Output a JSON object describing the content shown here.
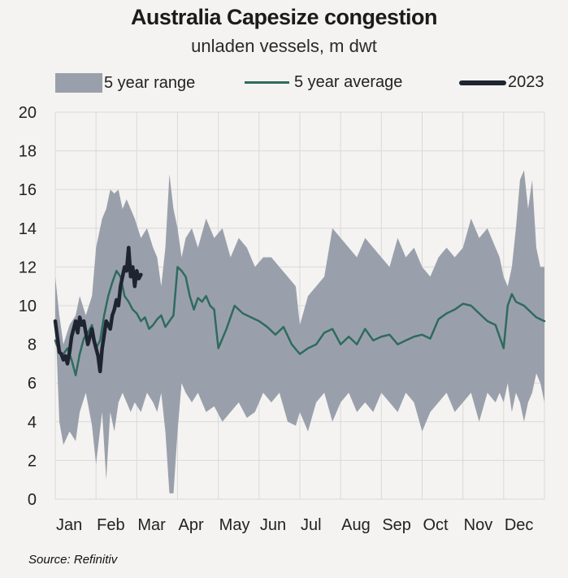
{
  "chart_data": {
    "type": "line",
    "title": "Australia Capesize congestion",
    "subtitle": "unladen vessels, m dwt",
    "ylim": [
      0,
      20
    ],
    "yticks": [
      0,
      2,
      4,
      6,
      8,
      10,
      12,
      14,
      16,
      18,
      20
    ],
    "xlim": [
      0,
      12
    ],
    "categories": [
      "Jan",
      "Feb",
      "Mar",
      "Apr",
      "May",
      "Jun",
      "Jul",
      "Aug",
      "Sep",
      "Oct",
      "Nov",
      "Dec"
    ],
    "grid": true,
    "legend_position": "top",
    "series": [
      {
        "name": "5 year range",
        "kind": "band",
        "color": "#9aa0ab",
        "x": [
          0,
          0.1,
          0.2,
          0.35,
          0.5,
          0.6,
          0.75,
          0.9,
          1.0,
          1.15,
          1.25,
          1.35,
          1.45,
          1.55,
          1.65,
          1.75,
          1.85,
          1.95,
          2.1,
          2.25,
          2.4,
          2.5,
          2.6,
          2.7,
          2.8,
          2.9,
          3.0,
          3.1,
          3.2,
          3.35,
          3.5,
          3.7,
          3.9,
          4.1,
          4.3,
          4.5,
          4.7,
          4.9,
          5.1,
          5.3,
          5.5,
          5.7,
          5.9,
          6.0,
          6.2,
          6.4,
          6.6,
          6.8,
          7.0,
          7.2,
          7.4,
          7.6,
          7.8,
          8.0,
          8.2,
          8.4,
          8.6,
          8.8,
          9.0,
          9.2,
          9.4,
          9.6,
          9.8,
          10.0,
          10.2,
          10.4,
          10.6,
          10.8,
          10.9,
          11.0,
          11.1,
          11.2,
          11.3,
          11.4,
          11.5,
          11.6,
          11.7,
          11.8,
          11.9,
          12.0
        ],
        "low": [
          9.5,
          4.0,
          2.8,
          3.5,
          3.0,
          4.5,
          5.5,
          3.8,
          1.8,
          4.5,
          1.0,
          4.5,
          3.5,
          5.0,
          5.5,
          5.0,
          4.5,
          5.0,
          4.5,
          5.5,
          5.0,
          4.5,
          5.5,
          3.5,
          0.3,
          0.3,
          3.5,
          6.0,
          5.5,
          5.0,
          5.5,
          4.5,
          4.8,
          4.0,
          4.5,
          5.0,
          4.2,
          4.5,
          5.5,
          5.0,
          5.5,
          4.0,
          3.8,
          4.5,
          3.5,
          5.0,
          5.5,
          4.0,
          5.0,
          5.5,
          4.5,
          5.0,
          4.5,
          5.5,
          5.0,
          4.5,
          5.5,
          5.0,
          3.5,
          4.5,
          5.0,
          5.5,
          4.5,
          5.0,
          5.5,
          4.0,
          5.5,
          5.0,
          5.5,
          5.0,
          6.0,
          4.5,
          5.5,
          5.0,
          4.0,
          5.0,
          5.5,
          6.5,
          6.0,
          5.0
        ],
        "high": [
          11.5,
          9.5,
          8.0,
          9.0,
          9.5,
          10.5,
          9.5,
          10.5,
          13.0,
          14.5,
          15.0,
          16.0,
          15.8,
          16.0,
          15.0,
          15.5,
          15.0,
          14.5,
          13.5,
          14.0,
          13.0,
          12.5,
          11.0,
          13.0,
          16.8,
          15.0,
          14.0,
          12.5,
          13.5,
          14.0,
          13.0,
          14.5,
          13.5,
          14.0,
          12.5,
          13.5,
          13.0,
          12.0,
          12.5,
          12.5,
          12.0,
          11.5,
          11.0,
          9.0,
          10.5,
          11.0,
          11.5,
          14.0,
          13.5,
          13.0,
          12.5,
          13.5,
          13.0,
          12.5,
          12.0,
          13.5,
          12.5,
          13.0,
          12.0,
          11.5,
          12.5,
          13.0,
          12.5,
          13.0,
          14.5,
          13.5,
          14.0,
          13.0,
          12.5,
          11.5,
          11.0,
          12.0,
          14.0,
          16.5,
          17.0,
          15.0,
          16.5,
          13.0,
          12.0,
          12.0
        ]
      },
      {
        "name": "5 year average",
        "kind": "line",
        "color": "#2f6b5e",
        "x": [
          0,
          0.1,
          0.2,
          0.3,
          0.4,
          0.5,
          0.6,
          0.7,
          0.8,
          0.9,
          1.0,
          1.1,
          1.2,
          1.3,
          1.4,
          1.5,
          1.6,
          1.7,
          1.8,
          1.9,
          2.0,
          2.1,
          2.2,
          2.3,
          2.4,
          2.5,
          2.6,
          2.7,
          2.8,
          2.9,
          3.0,
          3.1,
          3.2,
          3.3,
          3.4,
          3.5,
          3.6,
          3.7,
          3.8,
          3.9,
          4.0,
          4.2,
          4.4,
          4.6,
          4.8,
          5.0,
          5.2,
          5.4,
          5.6,
          5.8,
          6.0,
          6.2,
          6.4,
          6.6,
          6.8,
          7.0,
          7.2,
          7.4,
          7.6,
          7.8,
          8.0,
          8.2,
          8.4,
          8.6,
          8.8,
          9.0,
          9.2,
          9.4,
          9.6,
          9.8,
          10.0,
          10.2,
          10.4,
          10.6,
          10.8,
          11.0,
          11.1,
          11.2,
          11.3,
          11.4,
          11.5,
          11.6,
          11.7,
          11.8,
          11.9,
          12.0
        ],
        "y": [
          8.2,
          7.6,
          7.5,
          7.8,
          7.2,
          6.4,
          7.5,
          8.3,
          8.6,
          9.0,
          7.8,
          8.2,
          9.5,
          10.5,
          11.2,
          11.8,
          11.5,
          10.5,
          10.2,
          9.8,
          9.6,
          9.2,
          9.4,
          8.8,
          9.0,
          9.3,
          9.5,
          8.9,
          9.2,
          9.5,
          12.0,
          11.8,
          11.5,
          10.5,
          9.8,
          10.4,
          10.2,
          10.5,
          10.0,
          9.8,
          7.8,
          8.8,
          10.0,
          9.6,
          9.4,
          9.2,
          8.9,
          8.5,
          8.9,
          8.0,
          7.5,
          7.8,
          8.0,
          8.6,
          8.8,
          8.0,
          8.4,
          8.0,
          8.8,
          8.2,
          8.4,
          8.5,
          8.0,
          8.2,
          8.4,
          8.5,
          8.3,
          9.3,
          9.6,
          9.8,
          10.1,
          10.0,
          9.6,
          9.2,
          9.0,
          7.8,
          10.0,
          10.6,
          10.2,
          10.1,
          10.0,
          9.8,
          9.6,
          9.4,
          9.3,
          9.2
        ]
      },
      {
        "name": "2023",
        "kind": "line",
        "color": "#1e2530",
        "x": [
          0.0,
          0.05,
          0.1,
          0.15,
          0.2,
          0.25,
          0.3,
          0.35,
          0.4,
          0.45,
          0.5,
          0.55,
          0.6,
          0.65,
          0.7,
          0.75,
          0.8,
          0.85,
          0.9,
          0.95,
          1.0,
          1.05,
          1.1,
          1.15,
          1.2,
          1.25,
          1.3,
          1.35,
          1.4,
          1.45,
          1.5,
          1.55,
          1.6,
          1.65,
          1.7,
          1.75,
          1.8,
          1.85,
          1.9,
          1.95,
          2.0,
          2.05,
          2.1
        ],
        "y": [
          9.2,
          8.4,
          7.6,
          7.5,
          7.2,
          7.4,
          7.0,
          7.6,
          8.4,
          8.8,
          9.2,
          8.6,
          9.4,
          9.0,
          9.2,
          8.6,
          8.0,
          8.4,
          8.8,
          8.2,
          7.8,
          7.4,
          6.6,
          7.8,
          8.5,
          9.2,
          9.0,
          8.8,
          9.5,
          9.8,
          10.3,
          10.0,
          11.0,
          11.5,
          12.0,
          11.8,
          13.0,
          11.5,
          12.0,
          11.0,
          11.8,
          11.4,
          11.6
        ]
      }
    ]
  },
  "source": "Source: Refinitiv"
}
